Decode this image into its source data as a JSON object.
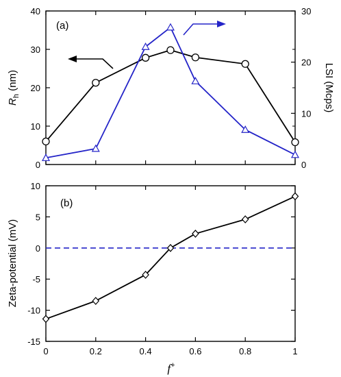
{
  "chart_data": [
    {
      "panel": "a",
      "panel_label": "(a)",
      "type": "line",
      "x": [
        0,
        0.2,
        0.4,
        0.5,
        0.6,
        0.8,
        1.0
      ],
      "xlim": [
        0,
        1
      ],
      "ylabel_main": "R",
      "ylabel_sub": "h",
      "ylabel_unit": " (nm)",
      "ylim": [
        0,
        40
      ],
      "yticks": [
        0,
        10,
        20,
        30,
        40
      ],
      "y2label": "LSI (Mcps)",
      "y2lim": [
        0,
        30
      ],
      "y2ticks": [
        0,
        10,
        20,
        30
      ],
      "grid": false,
      "series": [
        {
          "axis": "left",
          "color": "#000000",
          "marker": "circle",
          "values": [
            6.0,
            21.3,
            27.8,
            29.8,
            27.9,
            26.2,
            5.8
          ]
        },
        {
          "axis": "right",
          "color": "#2424c8",
          "marker": "triangle",
          "values": [
            1.3,
            3.1,
            23.0,
            26.8,
            16.3,
            6.8,
            1.9
          ]
        }
      ]
    },
    {
      "panel": "b",
      "panel_label": "(b)",
      "type": "line",
      "x": [
        0,
        0.2,
        0.4,
        0.5,
        0.6,
        0.8,
        1.0
      ],
      "xlim": [
        0,
        1
      ],
      "xticks": [
        "0",
        "0.2",
        "0.4",
        "0.6",
        "0.8",
        "1"
      ],
      "xlabel": "f",
      "xlabel_sup": "+",
      "ylabel": "Zeta-potential (mV)",
      "ylim": [
        -15,
        10
      ],
      "yticks": [
        -15,
        -10,
        -5,
        0,
        5,
        10
      ],
      "grid": false,
      "reference_line": {
        "y": 0,
        "color": "#2424c8",
        "style": "dashed"
      },
      "series": [
        {
          "color": "#000000",
          "marker": "diamond",
          "values": [
            -11.4,
            -8.5,
            -4.3,
            0.0,
            2.3,
            4.6,
            8.3
          ]
        }
      ]
    }
  ]
}
